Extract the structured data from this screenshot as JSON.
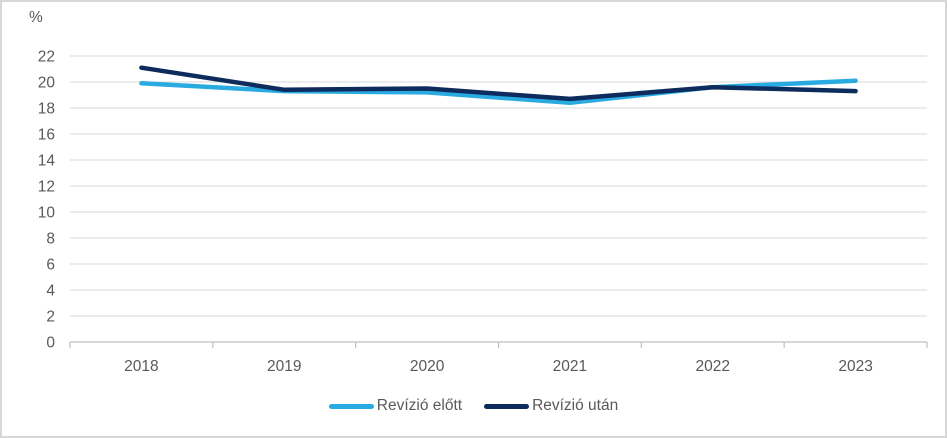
{
  "chart_data": {
    "type": "line",
    "title": "",
    "ylabel": "%",
    "xlabel": "",
    "categories": [
      "2018",
      "2019",
      "2020",
      "2021",
      "2022",
      "2023"
    ],
    "series": [
      {
        "name": "Revízió előtt",
        "color": "#29ABE2",
        "values": [
          19.9,
          19.3,
          19.2,
          18.4,
          19.6,
          20.1
        ]
      },
      {
        "name": "Revízió után",
        "color": "#0D2B5C",
        "values": [
          21.1,
          19.4,
          19.5,
          18.7,
          19.6,
          19.3
        ]
      }
    ],
    "ylim": [
      0,
      22
    ],
    "ytick_step": 2,
    "grid": true,
    "legend_position": "bottom"
  },
  "colors": {
    "gridline": "#D9D9D9",
    "axis": "#BFBFBF",
    "text": "#595959",
    "frame_border": "#D7D7D7",
    "background": "#FFFFFF"
  }
}
